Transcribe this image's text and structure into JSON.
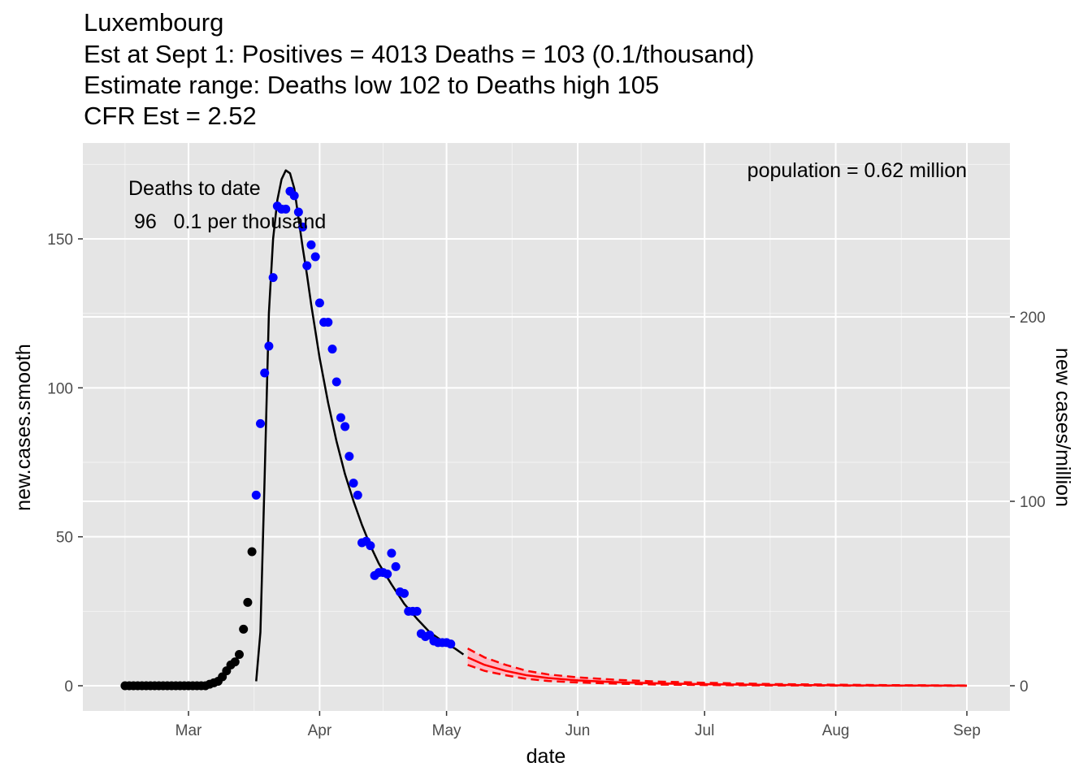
{
  "chart_data": {
    "type": "line",
    "title_lines": [
      "Luxembourg",
      "Est at Sept 1: Positives = 4013 Deaths = 103 (0.1/thousand)",
      "Estimate range: Deaths low 102 to Deaths high 105",
      "CFR Est = 2.52"
    ],
    "xlabel": "date",
    "ylabel": "new.cases.smooth",
    "ylabel_right": "new cases/million",
    "x_ticks": [
      "Mar",
      "Apr",
      "May",
      "Jun",
      "Jul",
      "Aug",
      "Sep"
    ],
    "y_ticks": [
      0,
      50,
      100,
      150
    ],
    "y_ticks_right": [
      0,
      100,
      200
    ],
    "ylim": [
      -8,
      182
    ],
    "grid": true,
    "annotations": {
      "deaths_title": "Deaths to date",
      "deaths_value": " 96   0.1 per thousand",
      "population": "population = 0.62 million"
    },
    "colors": {
      "panel": "#e5e5e5",
      "grid": "#ffffff",
      "observed_early": "#000000",
      "observed_fit_window": "#0000ff",
      "fit": "#000000",
      "forecast": "#ff0000",
      "forecast_band": "#ffb6c1"
    },
    "series": [
      {
        "color": "black",
        "kind": "points",
        "x": [
          "2020-02-15",
          "2020-02-16",
          "2020-02-17",
          "2020-02-18",
          "2020-02-19",
          "2020-02-20",
          "2020-02-21",
          "2020-02-22",
          "2020-02-23",
          "2020-02-24",
          "2020-02-25",
          "2020-02-26",
          "2020-02-27",
          "2020-02-28",
          "2020-02-29",
          "2020-03-01",
          "2020-03-02",
          "2020-03-03",
          "2020-03-04",
          "2020-03-05",
          "2020-03-06",
          "2020-03-07",
          "2020-03-08",
          "2020-03-09",
          "2020-03-10",
          "2020-03-11",
          "2020-03-12",
          "2020-03-13",
          "2020-03-14",
          "2020-03-15",
          "2020-03-16"
        ],
        "y": [
          0,
          0,
          0,
          0,
          0,
          0,
          0,
          0,
          0,
          0,
          0,
          0,
          0,
          0,
          0,
          0,
          0,
          0,
          0,
          0,
          0.5,
          1,
          1.5,
          3,
          5,
          7,
          8,
          10.5,
          19,
          28,
          45
        ]
      },
      {
        "color": "blue",
        "kind": "points",
        "x": [
          "2020-03-17",
          "2020-03-18",
          "2020-03-19",
          "2020-03-20",
          "2020-03-21",
          "2020-03-22",
          "2020-03-23",
          "2020-03-24",
          "2020-03-25",
          "2020-03-26",
          "2020-03-27",
          "2020-03-28",
          "2020-03-29",
          "2020-03-30",
          "2020-03-31",
          "2020-04-01",
          "2020-04-02",
          "2020-04-03",
          "2020-04-04",
          "2020-04-05",
          "2020-04-06",
          "2020-04-07",
          "2020-04-08",
          "2020-04-09",
          "2020-04-10",
          "2020-04-11",
          "2020-04-12",
          "2020-04-13",
          "2020-04-14",
          "2020-04-15",
          "2020-04-16",
          "2020-04-17",
          "2020-04-18",
          "2020-04-19",
          "2020-04-20",
          "2020-04-21",
          "2020-04-22",
          "2020-04-23",
          "2020-04-24",
          "2020-04-25",
          "2020-04-26",
          "2020-04-27",
          "2020-04-28",
          "2020-04-29",
          "2020-04-30",
          "2020-05-01",
          "2020-05-02"
        ],
        "y": [
          64,
          88,
          105,
          114,
          137,
          161,
          160,
          160,
          166,
          164.5,
          159,
          154,
          141,
          148,
          144,
          128.5,
          122,
          122,
          113,
          102,
          90,
          87,
          77,
          68,
          64,
          48,
          48.5,
          47,
          37,
          38,
          38,
          37.5,
          44.5,
          40,
          31.5,
          31,
          25,
          25,
          25,
          17.5,
          16.5,
          17,
          15,
          14.5,
          14.5,
          14.5,
          14
        ]
      },
      {
        "color": "black",
        "kind": "line",
        "name_hint": "fit",
        "x": [
          "2020-03-17",
          "2020-03-18",
          "2020-03-19",
          "2020-03-20",
          "2020-03-21",
          "2020-03-22",
          "2020-03-23",
          "2020-03-24",
          "2020-03-25",
          "2020-03-26",
          "2020-03-27",
          "2020-03-28",
          "2020-03-29",
          "2020-03-30",
          "2020-03-31",
          "2020-04-01",
          "2020-04-03",
          "2020-04-05",
          "2020-04-07",
          "2020-04-09",
          "2020-04-11",
          "2020-04-13",
          "2020-04-15",
          "2020-04-18",
          "2020-04-21",
          "2020-04-24",
          "2020-04-27",
          "2020-04-30",
          "2020-05-03",
          "2020-05-05"
        ],
        "y": [
          1.5,
          18,
          70,
          125,
          150,
          163,
          170,
          173,
          172,
          167,
          157,
          147,
          138,
          128,
          119,
          110,
          95,
          82,
          71,
          62,
          54,
          47,
          41,
          34,
          27.5,
          22.5,
          18,
          15,
          12.5,
          10.5
        ]
      },
      {
        "color": "red",
        "kind": "line",
        "name_hint": "forecast",
        "x": [
          "2020-05-06",
          "2020-05-10",
          "2020-05-15",
          "2020-05-20",
          "2020-05-25",
          "2020-06-01",
          "2020-06-10",
          "2020-06-20",
          "2020-07-01",
          "2020-07-15",
          "2020-08-01",
          "2020-08-15",
          "2020-09-01"
        ],
        "y": [
          9.5,
          7,
          5,
          3.5,
          2.6,
          1.8,
          1.2,
          0.8,
          0.5,
          0.3,
          0.15,
          0.08,
          0.03
        ],
        "upper": [
          12.5,
          9.5,
          7,
          5,
          3.8,
          2.8,
          2,
          1.4,
          1,
          0.6,
          0.35,
          0.2,
          0.1
        ],
        "lower": [
          7,
          5,
          3.5,
          2.3,
          1.6,
          1.1,
          0.7,
          0.4,
          0.25,
          0.12,
          0.05,
          0.02,
          0.01
        ]
      }
    ]
  }
}
